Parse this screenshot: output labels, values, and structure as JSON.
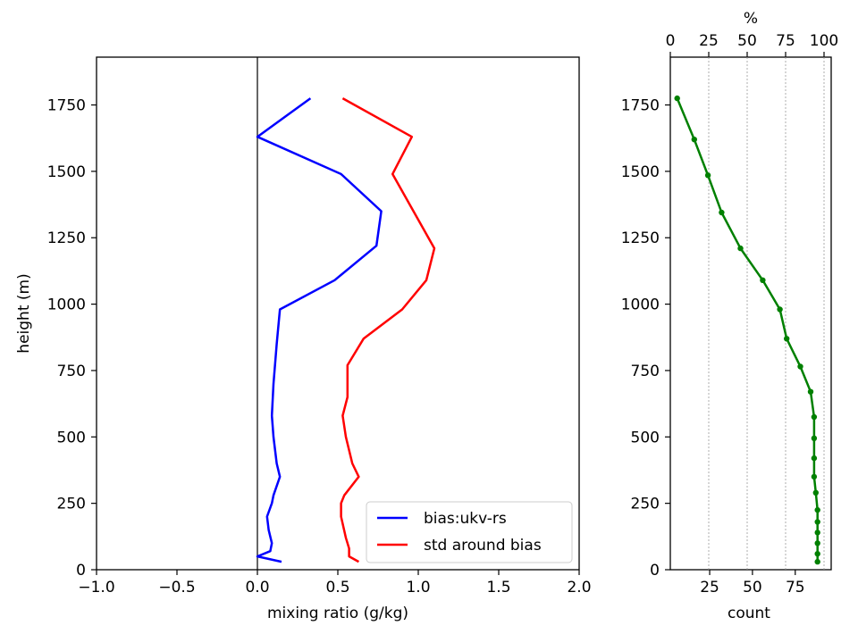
{
  "chart_data": [
    {
      "type": "line",
      "xlabel": "mixing ratio (g/kg)",
      "ylabel": "height (m)",
      "xlim": [
        -1.0,
        2.0
      ],
      "ylim": [
        0,
        1930
      ],
      "xticks": [
        "−1.0",
        "−0.5",
        "0.0",
        "0.5",
        "1.0",
        "1.5",
        "2.0"
      ],
      "xtick_values": [
        -1.0,
        -0.5,
        0.0,
        0.5,
        1.0,
        1.5,
        2.0
      ],
      "yticks": [
        "0",
        "250",
        "500",
        "750",
        "1000",
        "1250",
        "1500",
        "1750"
      ],
      "ytick_values": [
        0,
        250,
        500,
        750,
        1000,
        1250,
        1500,
        1750
      ],
      "vline_x": 0.0,
      "legend_position": "lower-right",
      "series": [
        {
          "name": "bias:ukv-rs",
          "color": "#0000ff",
          "points": [
            [
              0.15,
              30
            ],
            [
              0.0,
              50
            ],
            [
              0.08,
              70
            ],
            [
              0.09,
              100
            ],
            [
              0.07,
              150
            ],
            [
              0.06,
              200
            ],
            [
              0.09,
              250
            ],
            [
              0.1,
              280
            ],
            [
              0.14,
              350
            ],
            [
              0.12,
              400
            ],
            [
              0.11,
              450
            ],
            [
              0.1,
              500
            ],
            [
              0.09,
              580
            ],
            [
              0.1,
              700
            ],
            [
              0.12,
              850
            ],
            [
              0.14,
              980
            ],
            [
              0.48,
              1090
            ],
            [
              0.74,
              1220
            ],
            [
              0.77,
              1350
            ],
            [
              0.52,
              1490
            ],
            [
              0.0,
              1630
            ],
            [
              0.33,
              1775
            ]
          ]
        },
        {
          "name": "std around bias",
          "color": "#ff0000",
          "points": [
            [
              0.63,
              30
            ],
            [
              0.57,
              50
            ],
            [
              0.57,
              80
            ],
            [
              0.55,
              120
            ],
            [
              0.52,
              200
            ],
            [
              0.52,
              250
            ],
            [
              0.54,
              280
            ],
            [
              0.63,
              350
            ],
            [
              0.59,
              400
            ],
            [
              0.57,
              450
            ],
            [
              0.55,
              500
            ],
            [
              0.53,
              580
            ],
            [
              0.56,
              650
            ],
            [
              0.56,
              770
            ],
            [
              0.66,
              870
            ],
            [
              0.9,
              980
            ],
            [
              1.05,
              1090
            ],
            [
              1.1,
              1210
            ],
            [
              0.84,
              1490
            ],
            [
              0.96,
              1630
            ],
            [
              0.53,
              1775
            ]
          ]
        }
      ]
    },
    {
      "type": "line",
      "xlabel": "count",
      "top_label": "%",
      "xlim": [
        2,
        96
      ],
      "ylim": [
        0,
        1930
      ],
      "xticks": [
        "25",
        "50",
        "75"
      ],
      "xtick_values": [
        25,
        50,
        75
      ],
      "top_ticks": [
        "0",
        "25",
        "50",
        "75",
        "100"
      ],
      "top_tick_values": [
        0,
        25,
        50,
        75,
        100
      ],
      "yticks": [
        "0",
        "250",
        "500",
        "750",
        "1000",
        "1250",
        "1500",
        "1750"
      ],
      "ytick_values": [
        0,
        250,
        500,
        750,
        1000,
        1250,
        1500,
        1750
      ],
      "series": [
        {
          "name": "",
          "color": "#008000",
          "points": [
            [
              88,
              30
            ],
            [
              88,
              60
            ],
            [
              88,
              100
            ],
            [
              88,
              140
            ],
            [
              88,
              180
            ],
            [
              88,
              225
            ],
            [
              87,
              290
            ],
            [
              86,
              350
            ],
            [
              86,
              420
            ],
            [
              86,
              495
            ],
            [
              86,
              575
            ],
            [
              84,
              670
            ],
            [
              78,
              765
            ],
            [
              70,
              870
            ],
            [
              66,
              980
            ],
            [
              56,
              1090
            ],
            [
              43,
              1210
            ],
            [
              32,
              1345
            ],
            [
              24,
              1485
            ],
            [
              16,
              1620
            ],
            [
              6,
              1775
            ]
          ]
        }
      ]
    }
  ]
}
